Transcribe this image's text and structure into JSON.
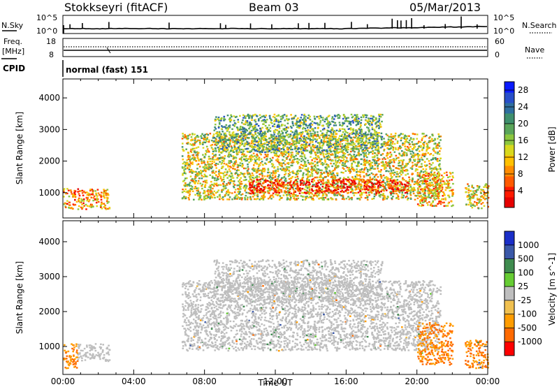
{
  "header": {
    "station": "Stokkseyri (fitACF)",
    "beam": "Beam 03",
    "date": "05/Mar/2013"
  },
  "top_panels": {
    "nsky_label": "N.Sky",
    "nsky_ticks": [
      "10^5",
      "10^0"
    ],
    "nsearch_label": "N.Search",
    "nsearch_ticks": [
      "10^5",
      "10^0"
    ],
    "freq_label": "Freq.",
    "freq_unit": "[MHz]",
    "freq_ticks": [
      "18",
      "8"
    ],
    "nave_label": "Nave",
    "nave_ticks": [
      "60",
      "0"
    ],
    "cpid_label": "CPID",
    "cpid_value": "normal (fast) 151"
  },
  "chart_data": [
    {
      "type": "heatmap",
      "panel": "power",
      "xlabel": "",
      "ylabel": "Slant Range [km]",
      "x_ticks": [
        "00:00",
        "04:00",
        "08:00",
        "12:00",
        "16:00",
        "20:00",
        "00:00"
      ],
      "y_ticks": [
        1000,
        2000,
        3000,
        4000
      ],
      "ylim": [
        200,
        4600
      ],
      "colorbar": {
        "label": "Power [dB]",
        "ticks": [
          4,
          8,
          12,
          16,
          20,
          24,
          28
        ],
        "range": [
          0,
          30
        ],
        "colors": [
          "#0a1aff",
          "#284fc9",
          "#2f6e9e",
          "#3f8f6d",
          "#5aa55a",
          "#8cc63f",
          "#d8d81e",
          "#ffc000",
          "#ff8c00",
          "#ff5a00",
          "#ff1a00",
          "#e60000"
        ]
      },
      "regions_note": "scatter echoes, UT hours vs slant range km",
      "regions": [
        {
          "t0": 0.0,
          "t1": 2.6,
          "r0": 500,
          "r1": 1150,
          "level": 0.75
        },
        {
          "t0": 6.7,
          "t1": 21.3,
          "r0": 800,
          "r1": 2900,
          "level": 0.55
        },
        {
          "t0": 10.5,
          "t1": 19.5,
          "r0": 1000,
          "r1": 1450,
          "level": 1.0
        },
        {
          "t0": 8.5,
          "t1": 18.0,
          "r0": 2300,
          "r1": 3500,
          "level": 0.35
        },
        {
          "t0": 20.0,
          "t1": 22.0,
          "r0": 600,
          "r1": 1700,
          "level": 0.7
        },
        {
          "t0": 22.7,
          "t1": 24.0,
          "r0": 500,
          "r1": 1300,
          "level": 0.6
        }
      ]
    },
    {
      "type": "heatmap",
      "panel": "velocity",
      "xlabel": "Time UT",
      "ylabel": "Slant Range [km]",
      "x_ticks": [
        "00:00",
        "04:00",
        "08:00",
        "12:00",
        "16:00",
        "20:00",
        "00:00"
      ],
      "y_ticks": [
        1000,
        2000,
        3000,
        4000
      ],
      "ylim": [
        200,
        4600
      ],
      "colorbar": {
        "label": "Velocity [m s^-1]",
        "ticks": [
          "1000",
          "500",
          "100",
          "25",
          "-25",
          "-100",
          "-500",
          "-1000"
        ],
        "colors": [
          "#1a2ec8",
          "#3a58a8",
          "#3f8c4f",
          "#66cc33",
          "#bebebe",
          "#f0c050",
          "#ff9c00",
          "#ff6a00",
          "#ff0000"
        ]
      },
      "regions": [
        {
          "t0": 0.0,
          "t1": 0.8,
          "r0": 400,
          "r1": 1100,
          "vel": -500
        },
        {
          "t0": 0.8,
          "t1": 2.6,
          "r0": 600,
          "r1": 1100,
          "vel": 0
        },
        {
          "t0": 6.7,
          "t1": 21.3,
          "r0": 900,
          "r1": 2900,
          "vel": 0
        },
        {
          "t0": 8.5,
          "t1": 18.0,
          "r0": 2300,
          "r1": 3500,
          "vel": 0
        },
        {
          "t0": 20.0,
          "t1": 22.0,
          "r0": 500,
          "r1": 1700,
          "vel": -500
        },
        {
          "t0": 22.7,
          "t1": 24.0,
          "r0": 400,
          "r1": 1200,
          "vel": -500
        }
      ]
    }
  ]
}
